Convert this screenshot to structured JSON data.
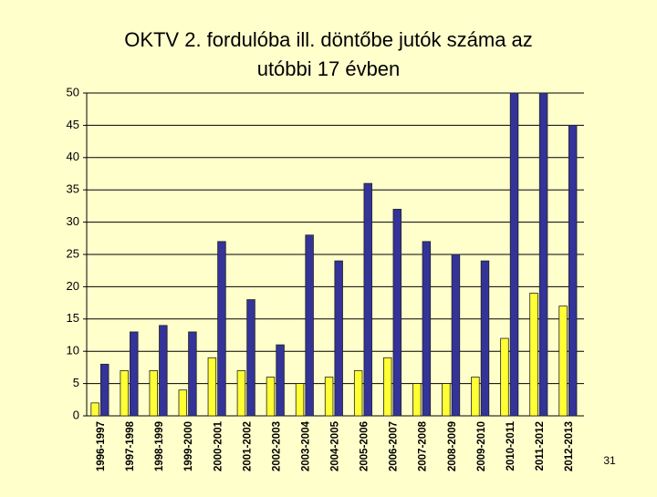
{
  "chart_data": {
    "type": "bar",
    "title": [
      "OKTV 2. fordulóba ill. döntőbe jutók száma az",
      "utóbbi 17 évben"
    ],
    "categories": [
      "1996-1997",
      "1997-1998",
      "1998-1999",
      "1999-2000",
      "2000-2001",
      "2001-2002",
      "2002-2003",
      "2003-2004",
      "2004-2005",
      "2005-2006",
      "2006-2007",
      "2007-2008",
      "2008-2009",
      "2009-2010",
      "2010-2011",
      "2011-2012",
      "2012-2013"
    ],
    "series": [
      {
        "color": "#ffff33",
        "values": [
          2,
          7,
          7,
          4,
          9,
          7,
          6,
          5,
          6,
          7,
          9,
          5,
          5,
          6,
          12,
          19,
          17
        ]
      },
      {
        "color": "#333399",
        "values": [
          8,
          13,
          14,
          13,
          27,
          18,
          11,
          28,
          24,
          36,
          32,
          27,
          25,
          24,
          50,
          50,
          45
        ]
      }
    ],
    "ylim": [
      0,
      50
    ],
    "yticks": [
      0,
      5,
      10,
      15,
      20,
      25,
      30,
      35,
      40,
      45,
      50
    ],
    "grid": true
  },
  "page_number": "31"
}
